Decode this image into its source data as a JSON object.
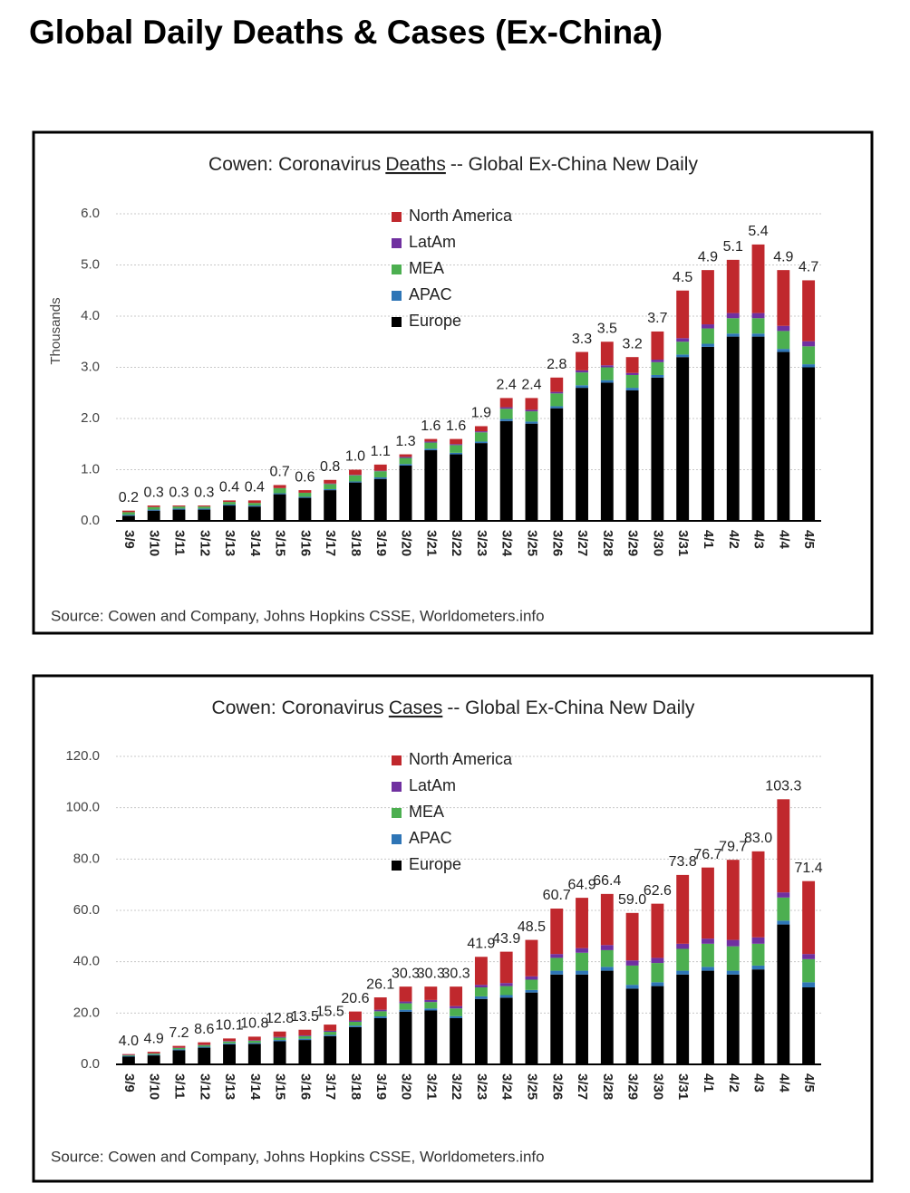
{
  "title": "Global Daily Deaths & Cases (Ex-China)",
  "chart_data": [
    {
      "type": "stacked-bar",
      "title": [
        "Cowen: Coronavirus",
        "Deaths",
        "-- Global Ex-China New Daily"
      ],
      "y_label": "Thousands",
      "source": "Source: Cowen and Company, Johns Hopkins CSSE, Worldometers.info",
      "categories": [
        "3/9",
        "3/10",
        "3/11",
        "3/12",
        "3/13",
        "3/14",
        "3/15",
        "3/16",
        "3/17",
        "3/18",
        "3/19",
        "3/20",
        "3/21",
        "3/22",
        "3/23",
        "3/24",
        "3/25",
        "3/26",
        "3/27",
        "3/28",
        "3/29",
        "3/30",
        "3/31",
        "4/1",
        "4/2",
        "4/3",
        "4/4",
        "4/5"
      ],
      "series": [
        {
          "name": "Europe",
          "color": "#000000",
          "values": [
            0.1,
            0.2,
            0.22,
            0.22,
            0.3,
            0.28,
            0.52,
            0.45,
            0.6,
            0.75,
            0.82,
            1.08,
            1.38,
            1.3,
            1.52,
            1.95,
            1.9,
            2.2,
            2.6,
            2.7,
            2.55,
            2.8,
            3.2,
            3.4,
            3.6,
            3.6,
            3.3,
            3.0
          ]
        },
        {
          "name": "APAC",
          "color": "#2e75b6",
          "values": [
            0.02,
            0.02,
            0.02,
            0.02,
            0.02,
            0.02,
            0.02,
            0.02,
            0.02,
            0.02,
            0.03,
            0.03,
            0.03,
            0.03,
            0.03,
            0.04,
            0.04,
            0.04,
            0.05,
            0.05,
            0.05,
            0.05,
            0.05,
            0.06,
            0.06,
            0.06,
            0.06,
            0.06
          ]
        },
        {
          "name": "MEA",
          "color": "#4caf50",
          "values": [
            0.05,
            0.05,
            0.04,
            0.04,
            0.05,
            0.05,
            0.1,
            0.08,
            0.1,
            0.12,
            0.12,
            0.12,
            0.12,
            0.15,
            0.18,
            0.2,
            0.2,
            0.25,
            0.25,
            0.25,
            0.25,
            0.25,
            0.25,
            0.3,
            0.3,
            0.3,
            0.35,
            0.35
          ]
        },
        {
          "name": "LatAm",
          "color": "#7030a0",
          "values": [
            0,
            0,
            0,
            0,
            0,
            0,
            0,
            0,
            0.01,
            0.01,
            0.01,
            0.02,
            0.02,
            0.02,
            0.02,
            0.03,
            0.03,
            0.03,
            0.04,
            0.04,
            0.04,
            0.05,
            0.07,
            0.08,
            0.1,
            0.1,
            0.1,
            0.1
          ]
        },
        {
          "name": "North America",
          "color": "#c0282d",
          "values": [
            0.03,
            0.03,
            0.02,
            0.02,
            0.03,
            0.05,
            0.06,
            0.05,
            0.07,
            0.1,
            0.12,
            0.05,
            0.05,
            0.1,
            0.1,
            0.18,
            0.23,
            0.28,
            0.36,
            0.46,
            0.31,
            0.55,
            0.93,
            1.06,
            1.04,
            1.34,
            1.09,
            1.19
          ]
        }
      ],
      "total_labels": [
        "0.2",
        "0.3",
        "0.3",
        "0.3",
        "0.4",
        "0.4",
        "0.7",
        "0.6",
        "0.8",
        "1.0",
        "1.1",
        "1.3",
        "1.6",
        "1.6",
        "1.9",
        "2.4",
        "2.4",
        "2.8",
        "3.3",
        "3.5",
        "3.2",
        "3.7",
        "4.5",
        "4.9",
        "5.1",
        "5.4",
        "4.9",
        "4.7"
      ],
      "ylim": [
        0,
        6
      ],
      "yticks": [
        {
          "value": 0,
          "label": "0.0"
        },
        {
          "value": 1,
          "label": "1.0"
        },
        {
          "value": 2,
          "label": "2.0"
        },
        {
          "value": 3,
          "label": "3.0"
        },
        {
          "value": 4,
          "label": "4.0"
        },
        {
          "value": 5,
          "label": "5.0"
        },
        {
          "value": 6,
          "label": "6.0"
        }
      ],
      "grid": true,
      "legend": "top-center"
    },
    {
      "type": "stacked-bar",
      "title": [
        "Cowen: Coronavirus",
        "Cases",
        "-- Global Ex-China New Daily"
      ],
      "source": "Source: Cowen and Company, Johns Hopkins CSSE, Worldometers.info",
      "categories": [
        "3/9",
        "3/10",
        "3/11",
        "3/12",
        "3/13",
        "3/14",
        "3/15",
        "3/16",
        "3/17",
        "3/18",
        "3/19",
        "3/20",
        "3/21",
        "3/22",
        "3/23",
        "3/24",
        "3/25",
        "3/26",
        "3/27",
        "3/28",
        "3/29",
        "3/30",
        "3/31",
        "4/1",
        "4/2",
        "4/3",
        "4/4",
        "4/5"
      ],
      "series": [
        {
          "name": "Europe",
          "color": "#000000",
          "values": [
            3.0,
            3.5,
            5.5,
            6.5,
            7.8,
            8.0,
            9.0,
            9.5,
            11.0,
            14.5,
            18.0,
            20.5,
            21.0,
            18.0,
            25.5,
            26.0,
            28.0,
            35.0,
            35.0,
            36.5,
            29.5,
            30.5,
            35.0,
            36.5,
            35.0,
            37.0,
            54.5,
            30.0
          ]
        },
        {
          "name": "APAC",
          "color": "#2e75b6",
          "values": [
            0.3,
            0.3,
            0.4,
            0.4,
            0.4,
            0.4,
            0.5,
            0.5,
            0.5,
            0.6,
            0.7,
            0.8,
            0.8,
            0.8,
            1.0,
            1.0,
            1.0,
            1.5,
            1.5,
            1.5,
            1.5,
            1.5,
            1.5,
            1.5,
            1.5,
            1.5,
            1.5,
            2.0
          ]
        },
        {
          "name": "MEA",
          "color": "#4caf50",
          "values": [
            0.3,
            0.4,
            0.5,
            0.6,
            0.7,
            0.8,
            0.9,
            1.0,
            1.2,
            1.5,
            2.0,
            2.5,
            2.5,
            3.0,
            3.5,
            3.5,
            4.0,
            5.0,
            7.0,
            6.5,
            7.5,
            7.5,
            8.5,
            9.0,
            9.5,
            8.5,
            9.0,
            9.0
          ]
        },
        {
          "name": "LatAm",
          "color": "#7030a0",
          "values": [
            0.1,
            0.1,
            0.1,
            0.1,
            0.2,
            0.2,
            0.3,
            0.3,
            0.4,
            0.5,
            0.6,
            0.7,
            0.8,
            0.9,
            1.0,
            1.2,
            1.3,
            1.5,
            1.8,
            2.0,
            2.0,
            2.0,
            2.0,
            2.0,
            2.5,
            2.5,
            2.0,
            2.0
          ]
        },
        {
          "name": "North America",
          "color": "#c0282d",
          "values": [
            0.3,
            0.6,
            0.7,
            1.0,
            1.0,
            1.4,
            2.1,
            2.2,
            2.4,
            3.5,
            4.8,
            5.8,
            5.2,
            7.6,
            10.9,
            12.2,
            14.2,
            17.7,
            19.6,
            19.9,
            18.5,
            21.1,
            26.8,
            27.7,
            31.2,
            33.5,
            36.3,
            28.4
          ]
        }
      ],
      "total_labels": [
        "4.0",
        "4.9",
        "7.2",
        "8.6",
        "10.1",
        "10.8",
        "12.8",
        "13.5",
        "15.5",
        "20.6",
        "26.1",
        "30.3",
        "30.3",
        "30.3",
        "41.9",
        "43.9",
        "48.5",
        "60.7",
        "64.9",
        "66.4",
        "59.0",
        "62.6",
        "73.8",
        "76.7",
        "79.7",
        "83.0",
        "103.3",
        "71.4"
      ],
      "ylim": [
        0,
        120
      ],
      "yticks": [
        {
          "value": 0,
          "label": "0.0"
        },
        {
          "value": 20,
          "label": "20.0"
        },
        {
          "value": 40,
          "label": "40.0"
        },
        {
          "value": 60,
          "label": "60.0"
        },
        {
          "value": 80,
          "label": "80.0"
        },
        {
          "value": 100,
          "label": "100.0"
        },
        {
          "value": 120,
          "label": "120.0"
        }
      ],
      "grid": true,
      "legend": "top-center"
    }
  ]
}
